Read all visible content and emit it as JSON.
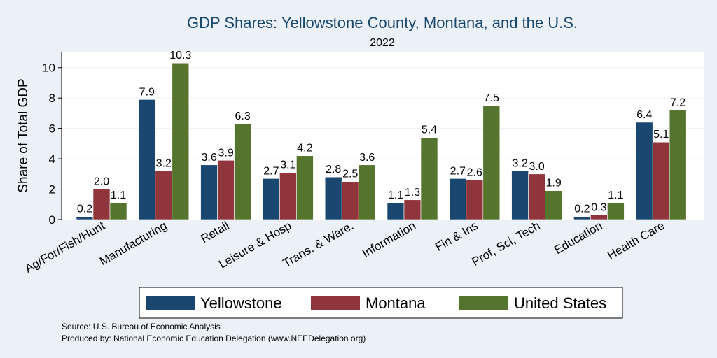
{
  "chart_data": {
    "type": "bar",
    "title": "GDP Shares: Yellowstone County, Montana, and the U.S.",
    "subtitle": "2022",
    "ylabel": "Share of Total GDP",
    "xlabel": "",
    "ylim": [
      0,
      11
    ],
    "yticks": [
      0,
      2,
      4,
      6,
      8,
      10
    ],
    "grid": true,
    "legend_position": "bottom",
    "categories": [
      "Ag/For/Fish/Hunt",
      "Manufacturing",
      "Retail",
      "Leisure & Hosp",
      "Trans. & Ware.",
      "Information",
      "Fin & Ins",
      "Prof, Sci, Tech",
      "Education",
      "Health Care"
    ],
    "series": [
      {
        "name": "Yellowstone",
        "color": "#1a476f",
        "values": [
          0.2,
          7.9,
          3.6,
          2.7,
          2.8,
          1.1,
          2.7,
          3.2,
          0.2,
          6.4
        ],
        "labels": [
          "0.2",
          "7.9",
          "3.6",
          "2.7",
          "2.8",
          "1.1",
          "2.7",
          "3.2",
          "0.2",
          "6.4"
        ]
      },
      {
        "name": "Montana",
        "color": "#90353b",
        "values": [
          2.0,
          3.2,
          3.9,
          3.1,
          2.5,
          1.3,
          2.6,
          3.0,
          0.3,
          5.1
        ],
        "labels": [
          "2.0",
          "3.2",
          "3.9",
          "3.1",
          "2.5",
          "1.3",
          "2.6",
          "3.0",
          "0.3",
          "5.1"
        ]
      },
      {
        "name": "United States",
        "color": "#55752f",
        "values": [
          1.1,
          10.3,
          6.3,
          4.2,
          3.6,
          5.4,
          7.5,
          1.9,
          1.1,
          7.2
        ],
        "labels": [
          "1.1",
          "10.3",
          "6.3",
          "4.2",
          "3.6",
          "5.4",
          "7.5",
          "1.9",
          "1.1",
          "7.2"
        ]
      }
    ]
  },
  "notes": {
    "source": "Source: U.S. Bureau of Economic Analysis",
    "produced_by": "Produced by: National Economic Education Delegation (www.NEEDelegation.org)"
  }
}
